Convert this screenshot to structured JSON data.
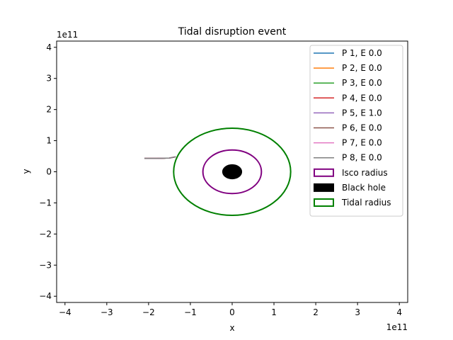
{
  "chart_data": {
    "type": "line",
    "title": "Tidal disruption event",
    "xlabel": "x",
    "ylabel": "y",
    "x_offset_label": "1e11",
    "y_offset_label": "1e11",
    "xlim": [
      -4.2,
      4.2
    ],
    "ylim": [
      -4.2,
      4.2
    ],
    "xticks": [
      -4,
      -3,
      -2,
      -1,
      0,
      1,
      2,
      3,
      4
    ],
    "xtick_labels": [
      "−4",
      "−3",
      "−2",
      "−1",
      "0",
      "1",
      "2",
      "3",
      "4"
    ],
    "yticks": [
      -4,
      -3,
      -2,
      -1,
      0,
      1,
      2,
      3,
      4
    ],
    "ytick_labels": [
      "−4",
      "−3",
      "−2",
      "−1",
      "0",
      "1",
      "2",
      "3",
      "4"
    ],
    "grid": false,
    "legend_position": "upper right",
    "series": [
      {
        "name": "P 1, E 0.0",
        "color": "#1f77b4",
        "x": [
          -2.1,
          -1.8,
          -1.5,
          -1.35
        ],
        "y": [
          0.43,
          0.43,
          0.44,
          0.48
        ]
      },
      {
        "name": "P 2, E 0.0",
        "color": "#ff7f0e",
        "x": [
          -2.1,
          -1.8,
          -1.5,
          -1.35
        ],
        "y": [
          0.43,
          0.43,
          0.44,
          0.48
        ]
      },
      {
        "name": "P 3, E 0.0",
        "color": "#2ca02c",
        "x": [
          -2.1,
          -1.8,
          -1.5,
          -1.35
        ],
        "y": [
          0.43,
          0.43,
          0.44,
          0.48
        ]
      },
      {
        "name": "P 4, E 0.0",
        "color": "#d62728",
        "x": [
          -2.1,
          -1.8,
          -1.5,
          -1.35
        ],
        "y": [
          0.43,
          0.43,
          0.44,
          0.48
        ]
      },
      {
        "name": "P 5, E 1.0",
        "color": "#9467bd",
        "x": [
          -2.1,
          -1.8,
          -1.5,
          -1.35
        ],
        "y": [
          0.43,
          0.43,
          0.44,
          0.48
        ]
      },
      {
        "name": "P 6, E 0.0",
        "color": "#8c564b",
        "x": [
          -2.1,
          -1.8,
          -1.5,
          -1.35
        ],
        "y": [
          0.43,
          0.43,
          0.44,
          0.48
        ]
      },
      {
        "name": "P 7, E 0.0",
        "color": "#e377c2",
        "x": [
          -2.1,
          -1.8,
          -1.5,
          -1.35
        ],
        "y": [
          0.43,
          0.43,
          0.44,
          0.48
        ]
      },
      {
        "name": "P 8, E 0.0",
        "color": "#7f7f7f",
        "x": [
          -2.1,
          -1.8,
          -1.5,
          -1.35
        ],
        "y": [
          0.43,
          0.43,
          0.44,
          0.48
        ]
      }
    ],
    "circles": [
      {
        "name": "Isco radius",
        "center": [
          0,
          0
        ],
        "radius": 0.7,
        "edge_color": "#800080",
        "fill": "none"
      },
      {
        "name": "Black hole",
        "center": [
          0,
          0
        ],
        "radius": 0.23,
        "edge_color": "#000000",
        "fill": "#000000"
      },
      {
        "name": "Tidal radius",
        "center": [
          0,
          0
        ],
        "radius": 1.4,
        "edge_color": "#008000",
        "fill": "none"
      }
    ]
  }
}
